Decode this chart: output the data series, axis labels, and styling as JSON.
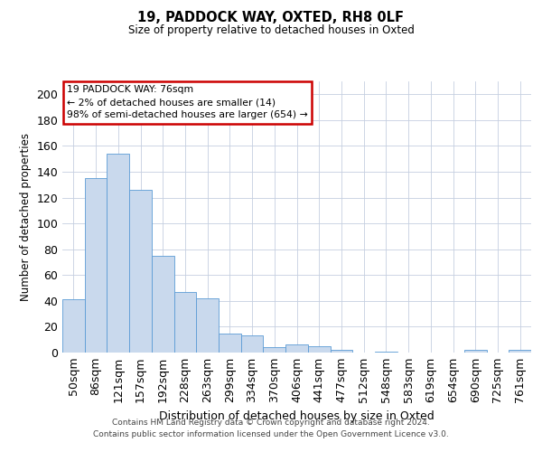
{
  "title": "19, PADDOCK WAY, OXTED, RH8 0LF",
  "subtitle": "Size of property relative to detached houses in Oxted",
  "xlabel": "Distribution of detached houses by size in Oxted",
  "ylabel": "Number of detached properties",
  "categories": [
    "50sqm",
    "86sqm",
    "121sqm",
    "157sqm",
    "192sqm",
    "228sqm",
    "263sqm",
    "299sqm",
    "334sqm",
    "370sqm",
    "406sqm",
    "441sqm",
    "477sqm",
    "512sqm",
    "548sqm",
    "583sqm",
    "619sqm",
    "654sqm",
    "690sqm",
    "725sqm",
    "761sqm"
  ],
  "values": [
    41,
    135,
    154,
    126,
    75,
    47,
    42,
    15,
    13,
    4,
    6,
    5,
    2,
    0,
    1,
    0,
    0,
    0,
    2,
    0,
    2
  ],
  "bar_color": "#c9d9ed",
  "bar_edge_color": "#5b9bd5",
  "annotation_text": "19 PADDOCK WAY: 76sqm\n← 2% of detached houses are smaller (14)\n98% of semi-detached houses are larger (654) →",
  "annotation_box_color": "#ffffff",
  "annotation_box_edge_color": "#cc0000",
  "ylim": [
    0,
    210
  ],
  "yticks": [
    0,
    20,
    40,
    60,
    80,
    100,
    120,
    140,
    160,
    180,
    200
  ],
  "footer_line1": "Contains HM Land Registry data © Crown copyright and database right 2024.",
  "footer_line2": "Contains public sector information licensed under the Open Government Licence v3.0.",
  "bg_color": "#ffffff",
  "grid_color": "#c5cfe0"
}
